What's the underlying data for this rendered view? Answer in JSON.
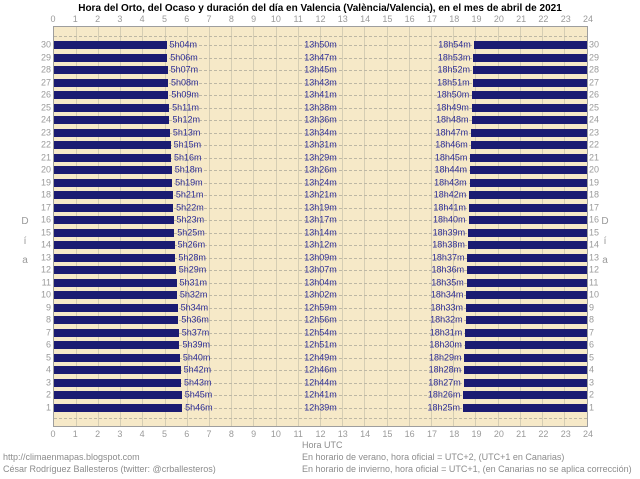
{
  "title": "Hora del Orto, del Ocaso y duración del día en Valencia (València/Valencia), en el mes de abril de 2021",
  "axes": {
    "x_label": "Hora UTC",
    "y_label_vertical": "Día",
    "x_ticks": [
      0,
      1,
      2,
      3,
      4,
      5,
      6,
      7,
      8,
      9,
      10,
      11,
      12,
      13,
      14,
      15,
      16,
      17,
      18,
      19,
      20,
      21,
      22,
      23,
      24
    ]
  },
  "footer": {
    "left_line1": "http://climaenmapas.blogspot.com",
    "left_line2": "César Rodríguez Ballesteros (twitter: @crballesteros)",
    "right_line1": "En horario de verano, hora oficial = UTC+2, (UTC+1 en Canarias)",
    "right_line2": "En horario de invierno, hora oficial = UTC+1, (en Canarias no se aplica corrección)"
  },
  "colors": {
    "plot_background": "#F6E9C8",
    "night_bar": "#1B1B72",
    "time_label_text": "#2E2E96",
    "axis_text": "#9A9A9A",
    "footer_text": "#8C8C8C"
  },
  "chart_data": {
    "type": "bar",
    "title": "Hora del Orto, del Ocaso y duración del día en Valencia (València/Valencia), en el mes de abril de 2021",
    "xlabel": "Hora UTC",
    "ylabel": "Día",
    "xlim": [
      0,
      24
    ],
    "grid": true,
    "legend": false,
    "description": "Horizontal night-span bars per day of April 2021: dark bars run from 0h to sunrise (orto) and from sunset (ocaso) to 24h; labels give sunrise time, day length, sunset time.",
    "rows": [
      {
        "day": 30,
        "orto": "5h04m",
        "duracion": "13h50m",
        "ocaso": "18h54m"
      },
      {
        "day": 29,
        "orto": "5h06m",
        "duracion": "13h47m",
        "ocaso": "18h53m"
      },
      {
        "day": 28,
        "orto": "5h07m",
        "duracion": "13h45m",
        "ocaso": "18h52m"
      },
      {
        "day": 27,
        "orto": "5h08m",
        "duracion": "13h43m",
        "ocaso": "18h51m"
      },
      {
        "day": 26,
        "orto": "5h09m",
        "duracion": "13h41m",
        "ocaso": "18h50m"
      },
      {
        "day": 25,
        "orto": "5h11m",
        "duracion": "13h38m",
        "ocaso": "18h49m"
      },
      {
        "day": 24,
        "orto": "5h12m",
        "duracion": "13h36m",
        "ocaso": "18h48m"
      },
      {
        "day": 23,
        "orto": "5h13m",
        "duracion": "13h34m",
        "ocaso": "18h47m"
      },
      {
        "day": 22,
        "orto": "5h15m",
        "duracion": "13h31m",
        "ocaso": "18h46m"
      },
      {
        "day": 21,
        "orto": "5h16m",
        "duracion": "13h29m",
        "ocaso": "18h45m"
      },
      {
        "day": 20,
        "orto": "5h18m",
        "duracion": "13h26m",
        "ocaso": "18h44m"
      },
      {
        "day": 19,
        "orto": "5h19m",
        "duracion": "13h24m",
        "ocaso": "18h43m"
      },
      {
        "day": 18,
        "orto": "5h21m",
        "duracion": "13h21m",
        "ocaso": "18h42m"
      },
      {
        "day": 17,
        "orto": "5h22m",
        "duracion": "13h19m",
        "ocaso": "18h41m"
      },
      {
        "day": 16,
        "orto": "5h23m",
        "duracion": "13h17m",
        "ocaso": "18h40m"
      },
      {
        "day": 15,
        "orto": "5h25m",
        "duracion": "13h14m",
        "ocaso": "18h39m"
      },
      {
        "day": 14,
        "orto": "5h26m",
        "duracion": "13h12m",
        "ocaso": "18h38m"
      },
      {
        "day": 13,
        "orto": "5h28m",
        "duracion": "13h09m",
        "ocaso": "18h37m"
      },
      {
        "day": 12,
        "orto": "5h29m",
        "duracion": "13h07m",
        "ocaso": "18h36m"
      },
      {
        "day": 11,
        "orto": "5h31m",
        "duracion": "13h04m",
        "ocaso": "18h35m"
      },
      {
        "day": 10,
        "orto": "5h32m",
        "duracion": "13h02m",
        "ocaso": "18h34m"
      },
      {
        "day": 9,
        "orto": "5h34m",
        "duracion": "12h59m",
        "ocaso": "18h33m"
      },
      {
        "day": 8,
        "orto": "5h36m",
        "duracion": "12h56m",
        "ocaso": "18h32m"
      },
      {
        "day": 7,
        "orto": "5h37m",
        "duracion": "12h54m",
        "ocaso": "18h31m"
      },
      {
        "day": 6,
        "orto": "5h39m",
        "duracion": "12h51m",
        "ocaso": "18h30m"
      },
      {
        "day": 5,
        "orto": "5h40m",
        "duracion": "12h49m",
        "ocaso": "18h29m"
      },
      {
        "day": 4,
        "orto": "5h42m",
        "duracion": "12h46m",
        "ocaso": "18h28m"
      },
      {
        "day": 3,
        "orto": "5h43m",
        "duracion": "12h44m",
        "ocaso": "18h27m"
      },
      {
        "day": 2,
        "orto": "5h45m",
        "duracion": "12h41m",
        "ocaso": "18h26m"
      },
      {
        "day": 1,
        "orto": "5h46m",
        "duracion": "12h39m",
        "ocaso": "18h25m"
      }
    ]
  }
}
